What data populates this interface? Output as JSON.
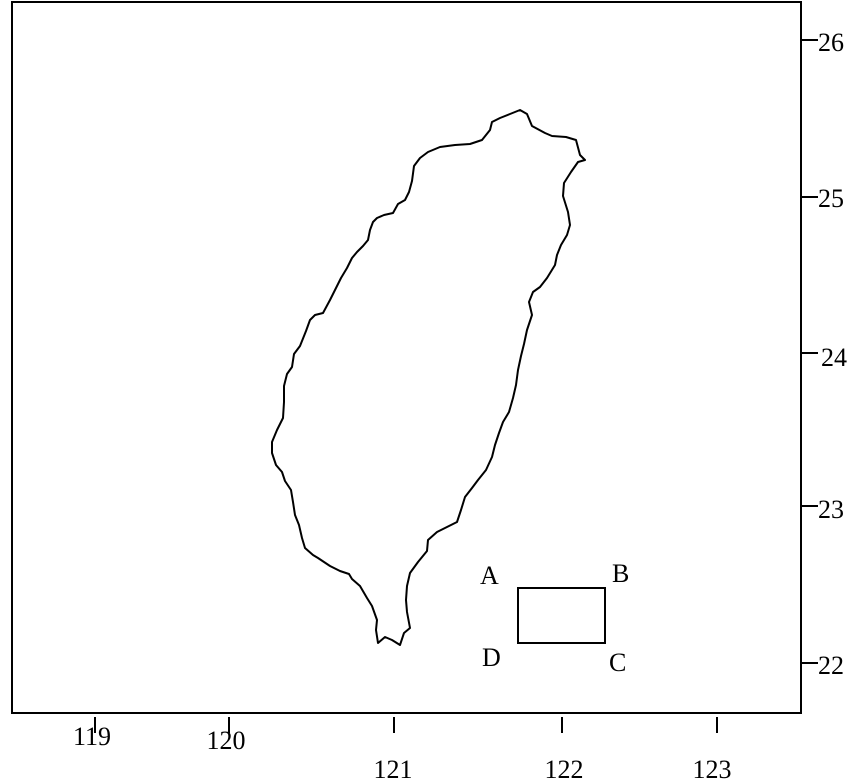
{
  "map": {
    "x_axis": {
      "unit": "degrees east longitude",
      "ticks": [
        {
          "value": 119,
          "label": "119"
        },
        {
          "value": 120,
          "label": "120"
        },
        {
          "value": 121,
          "label": "121"
        },
        {
          "value": 122,
          "label": "122"
        },
        {
          "value": 123,
          "label": "123"
        }
      ]
    },
    "y_axis": {
      "unit": "degrees north latitude",
      "position": "right",
      "ticks": [
        {
          "value": 26,
          "label": "26"
        },
        {
          "value": 25,
          "label": "25"
        },
        {
          "value": 24,
          "label": "24"
        },
        {
          "value": 23,
          "label": "23"
        },
        {
          "value": 22,
          "label": "22"
        }
      ]
    },
    "features": {
      "island": "coastline outline (Taiwan)",
      "rectangle": {
        "corners": [
          {
            "label": "A",
            "lon": 121.75,
            "lat": 22.5
          },
          {
            "label": "B",
            "lon": 122.25,
            "lat": 22.5
          },
          {
            "label": "C",
            "lon": 122.25,
            "lat": 22.15
          },
          {
            "label": "D",
            "lon": 121.75,
            "lat": 22.15
          }
        ]
      }
    },
    "colors": {
      "line": "#000000",
      "background": "#ffffff"
    }
  }
}
